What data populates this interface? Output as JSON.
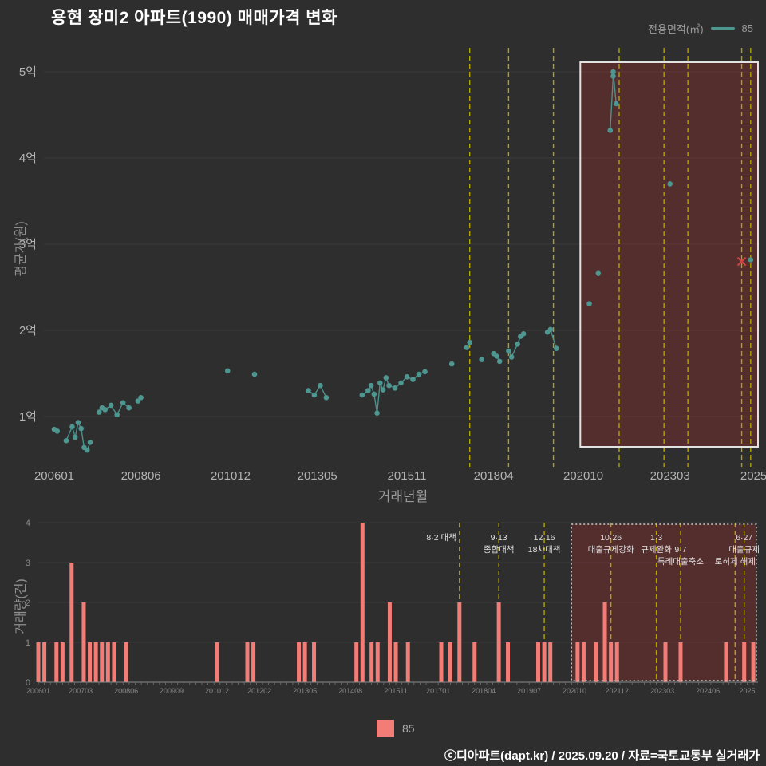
{
  "title": "용현 장미2 아파트(1990) 매매가격 변화",
  "legend_top": {
    "label": "전용면적(㎡)",
    "series": "85",
    "color": "#4e9690"
  },
  "legend_bottom": {
    "label": "85",
    "color": "#f27d76"
  },
  "footer": "ⓒ디아파트(dapt.kr) / 2025.09.20 / 자료=국토교통부 실거래가",
  "colors": {
    "background": "#2e2e2e",
    "accent_teal": "#4e9690",
    "accent_salmon": "#f27d76",
    "policy_yellow": "#b3a400",
    "cancel_red": "#cf4444",
    "highlight_fill": "rgba(165,45,45,0.33)",
    "highlight_border": "#e2e2e2",
    "grid": "#3b3b3b",
    "tick_text": "#b3b3b3",
    "small_text": "#8a8a8a",
    "annotation_text": "#e0e0e0"
  },
  "chart_data": [
    {
      "type": "scatter",
      "title": "매매가격 변화",
      "xlabel": "거래년월",
      "ylabel": "평균가(원)",
      "ylim": [
        0.5,
        5.2
      ],
      "y_ticks": [
        [
          1,
          "1억"
        ],
        [
          2,
          "2억"
        ],
        [
          3,
          "3억"
        ],
        [
          4,
          "4억"
        ],
        [
          5,
          "5억"
        ]
      ],
      "x_ticks": [
        "200601",
        "200806",
        "201012",
        "201305",
        "201511",
        "201804",
        "202010",
        "202303",
        "2025"
      ],
      "highlight": {
        "start": "202009",
        "end": "202509"
      },
      "series": [
        {
          "name": "85",
          "color": "#4e9690",
          "points": [
            [
              "200601",
              0.85
            ],
            [
              "200602",
              0.83
            ],
            [
              "200605",
              0.72
            ],
            [
              "200607",
              0.88
            ],
            [
              "200608",
              0.76
            ],
            [
              "200609",
              0.93
            ],
            [
              "200610",
              0.86
            ],
            [
              "200611",
              0.64
            ],
            [
              "200612",
              0.61
            ],
            [
              "200701",
              0.7
            ],
            [
              "200704",
              1.05
            ],
            [
              "200705",
              1.1
            ],
            [
              "200706",
              1.08
            ],
            [
              "200708",
              1.13
            ],
            [
              "200710",
              1.02
            ],
            [
              "200712",
              1.16
            ],
            [
              "200802",
              1.1
            ],
            [
              "200805",
              1.18
            ],
            [
              "200806",
              1.22
            ],
            [
              "201011",
              1.53
            ],
            [
              "201108",
              1.49
            ],
            [
              "201302",
              1.3
            ],
            [
              "201304",
              1.25
            ],
            [
              "201306",
              1.36
            ],
            [
              "201308",
              1.22
            ],
            [
              "201408",
              1.25
            ],
            [
              "201410",
              1.3
            ],
            [
              "201411",
              1.36
            ],
            [
              "201412",
              1.26
            ],
            [
              "201501",
              1.04
            ],
            [
              "201502",
              1.39
            ],
            [
              "201503",
              1.31
            ],
            [
              "201504",
              1.45
            ],
            [
              "201505",
              1.36
            ],
            [
              "201507",
              1.33
            ],
            [
              "201509",
              1.39
            ],
            [
              "201511",
              1.46
            ],
            [
              "201601",
              1.43
            ],
            [
              "201603",
              1.49
            ],
            [
              "201605",
              1.52
            ],
            [
              "201702",
              1.61
            ],
            [
              "201707",
              1.8
            ],
            [
              "201708",
              1.86
            ],
            [
              "201712",
              1.66
            ],
            [
              "201804",
              1.73
            ],
            [
              "201805",
              1.7
            ],
            [
              "201806",
              1.64
            ],
            [
              "201809",
              1.76
            ],
            [
              "201810",
              1.69
            ],
            [
              "201812",
              1.84
            ],
            [
              "201901",
              1.93
            ],
            [
              "201902",
              1.96
            ],
            [
              "201910",
              1.98
            ],
            [
              "201911",
              2.01
            ],
            [
              "202001",
              1.79
            ],
            [
              "202012",
              2.31
            ],
            [
              "202103",
              2.66
            ],
            [
              "202107",
              4.32
            ],
            [
              "202108",
              4.95
            ],
            [
              "202108",
              5.0
            ],
            [
              "202109",
              4.63
            ],
            [
              "202303",
              3.7
            ],
            [
              "202506",
              2.82
            ]
          ]
        }
      ],
      "cancelled": [
        [
          "202503",
          2.8
        ]
      ],
      "policies": [
        {
          "m": "201708",
          "r1": "8·2 대책",
          "side": "left"
        },
        {
          "m": "201809",
          "r1": "9·13",
          "r2": "종합대책"
        },
        {
          "m": "201912",
          "r1": "12·16",
          "r2": "18차대책"
        },
        {
          "m": "202110",
          "r1": "10·26",
          "r2": "대출규제강화"
        },
        {
          "m": "202301",
          "r1": "1·3",
          "r2": "규제완화"
        },
        {
          "m": "202309",
          "r2": "9·7",
          "r3": "특례대출축소"
        },
        {
          "m": "202503",
          "r3": "토허제 해제"
        },
        {
          "m": "202506",
          "r1": "6·27",
          "r2": "대출규제"
        }
      ]
    },
    {
      "type": "bar",
      "ylabel": "거래량(건)",
      "ylim": [
        0,
        4
      ],
      "y_ticks": [
        [
          0,
          "0"
        ],
        [
          1,
          "1"
        ],
        [
          2,
          "2"
        ],
        [
          3,
          "3"
        ],
        [
          4,
          "4"
        ]
      ],
      "x_ticks": [
        "200601",
        "200703",
        "200806",
        "200909",
        "201012",
        "201202",
        "201305",
        "201408",
        "201511",
        "201701",
        "201804",
        "201907",
        "202010",
        "202112",
        "202303",
        "202406",
        "2025"
      ],
      "highlight": {
        "start": "202009",
        "end": "202509"
      },
      "series": [
        {
          "name": "85",
          "color": "#f27d76",
          "values": [
            [
              "200601",
              1
            ],
            [
              "200603",
              1
            ],
            [
              "200607",
              1
            ],
            [
              "200609",
              1
            ],
            [
              "200612",
              3
            ],
            [
              "200704",
              2
            ],
            [
              "200706",
              1
            ],
            [
              "200708",
              1
            ],
            [
              "200710",
              1
            ],
            [
              "200712",
              1
            ],
            [
              "200802",
              1
            ],
            [
              "200806",
              1
            ],
            [
              "201012",
              1
            ],
            [
              "201110",
              1
            ],
            [
              "201112",
              1
            ],
            [
              "201303",
              1
            ],
            [
              "201305",
              1
            ],
            [
              "201308",
              1
            ],
            [
              "201410",
              1
            ],
            [
              "201412",
              4
            ],
            [
              "201503",
              1
            ],
            [
              "201505",
              1
            ],
            [
              "201509",
              2
            ],
            [
              "201511",
              1
            ],
            [
              "201603",
              1
            ],
            [
              "201702",
              1
            ],
            [
              "201705",
              1
            ],
            [
              "201708",
              2
            ],
            [
              "201801",
              1
            ],
            [
              "201809",
              2
            ],
            [
              "201812",
              1
            ],
            [
              "201910",
              1
            ],
            [
              "201912",
              1
            ],
            [
              "202002",
              1
            ],
            [
              "202011",
              1
            ],
            [
              "202101",
              1
            ],
            [
              "202105",
              1
            ],
            [
              "202108",
              2
            ],
            [
              "202110",
              1
            ],
            [
              "202112",
              1
            ],
            [
              "202304",
              1
            ],
            [
              "202309",
              1
            ],
            [
              "202412",
              1
            ],
            [
              "202506",
              1
            ],
            [
              "202509",
              1
            ]
          ]
        }
      ]
    }
  ]
}
